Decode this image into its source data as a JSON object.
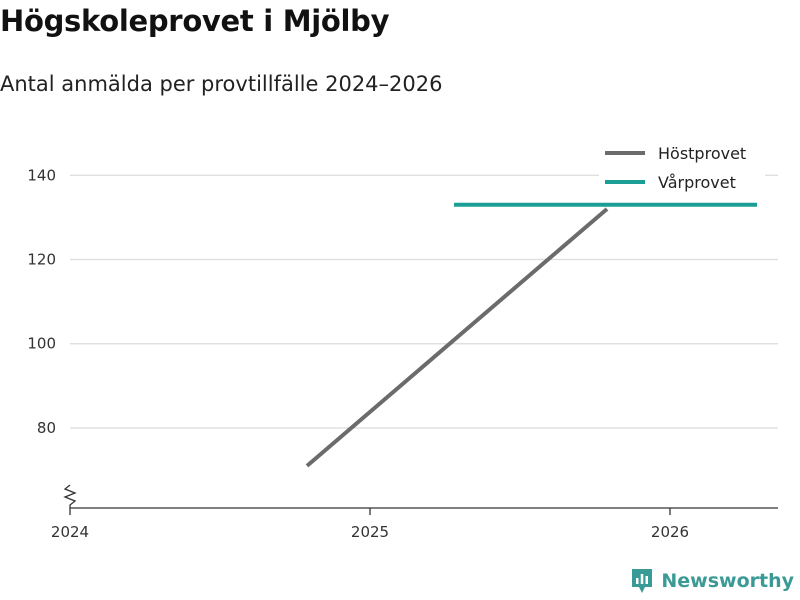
{
  "header": {
    "title": "Högskoleprovet i Mjölby",
    "subtitle": "Antal anmälda per provtillfälle 2024–2026"
  },
  "brand": {
    "name": "Newsworthy",
    "icon": "newsworthy-logo-icon",
    "color": "#3a9a96"
  },
  "chart_data": {
    "type": "line",
    "title": "Högskoleprovet i Mjölby",
    "subtitle": "Antal anmälda per provtillfälle 2024–2026",
    "xlabel": "",
    "ylabel": "",
    "xlim": [
      2024,
      2026.36
    ],
    "ylim": [
      61,
      146
    ],
    "x_ticks": [
      2024,
      2025,
      2026
    ],
    "x_tick_labels": [
      "2024",
      "2025",
      "2026"
    ],
    "y_ticks": [
      80,
      100,
      120,
      140
    ],
    "y_tick_labels": [
      "80",
      "100",
      "120",
      "140"
    ],
    "y_axis_broken": true,
    "grid": true,
    "legend_position": "top-right",
    "series": [
      {
        "name": "Höstprovet",
        "color": "#6b6b6e",
        "x": [
          2024.79,
          2025.79
        ],
        "values": [
          71,
          132
        ]
      },
      {
        "name": "Vårprovet",
        "color": "#1a9e96",
        "x": [
          2025.28,
          2026.29
        ],
        "values": [
          133,
          133
        ]
      }
    ]
  }
}
